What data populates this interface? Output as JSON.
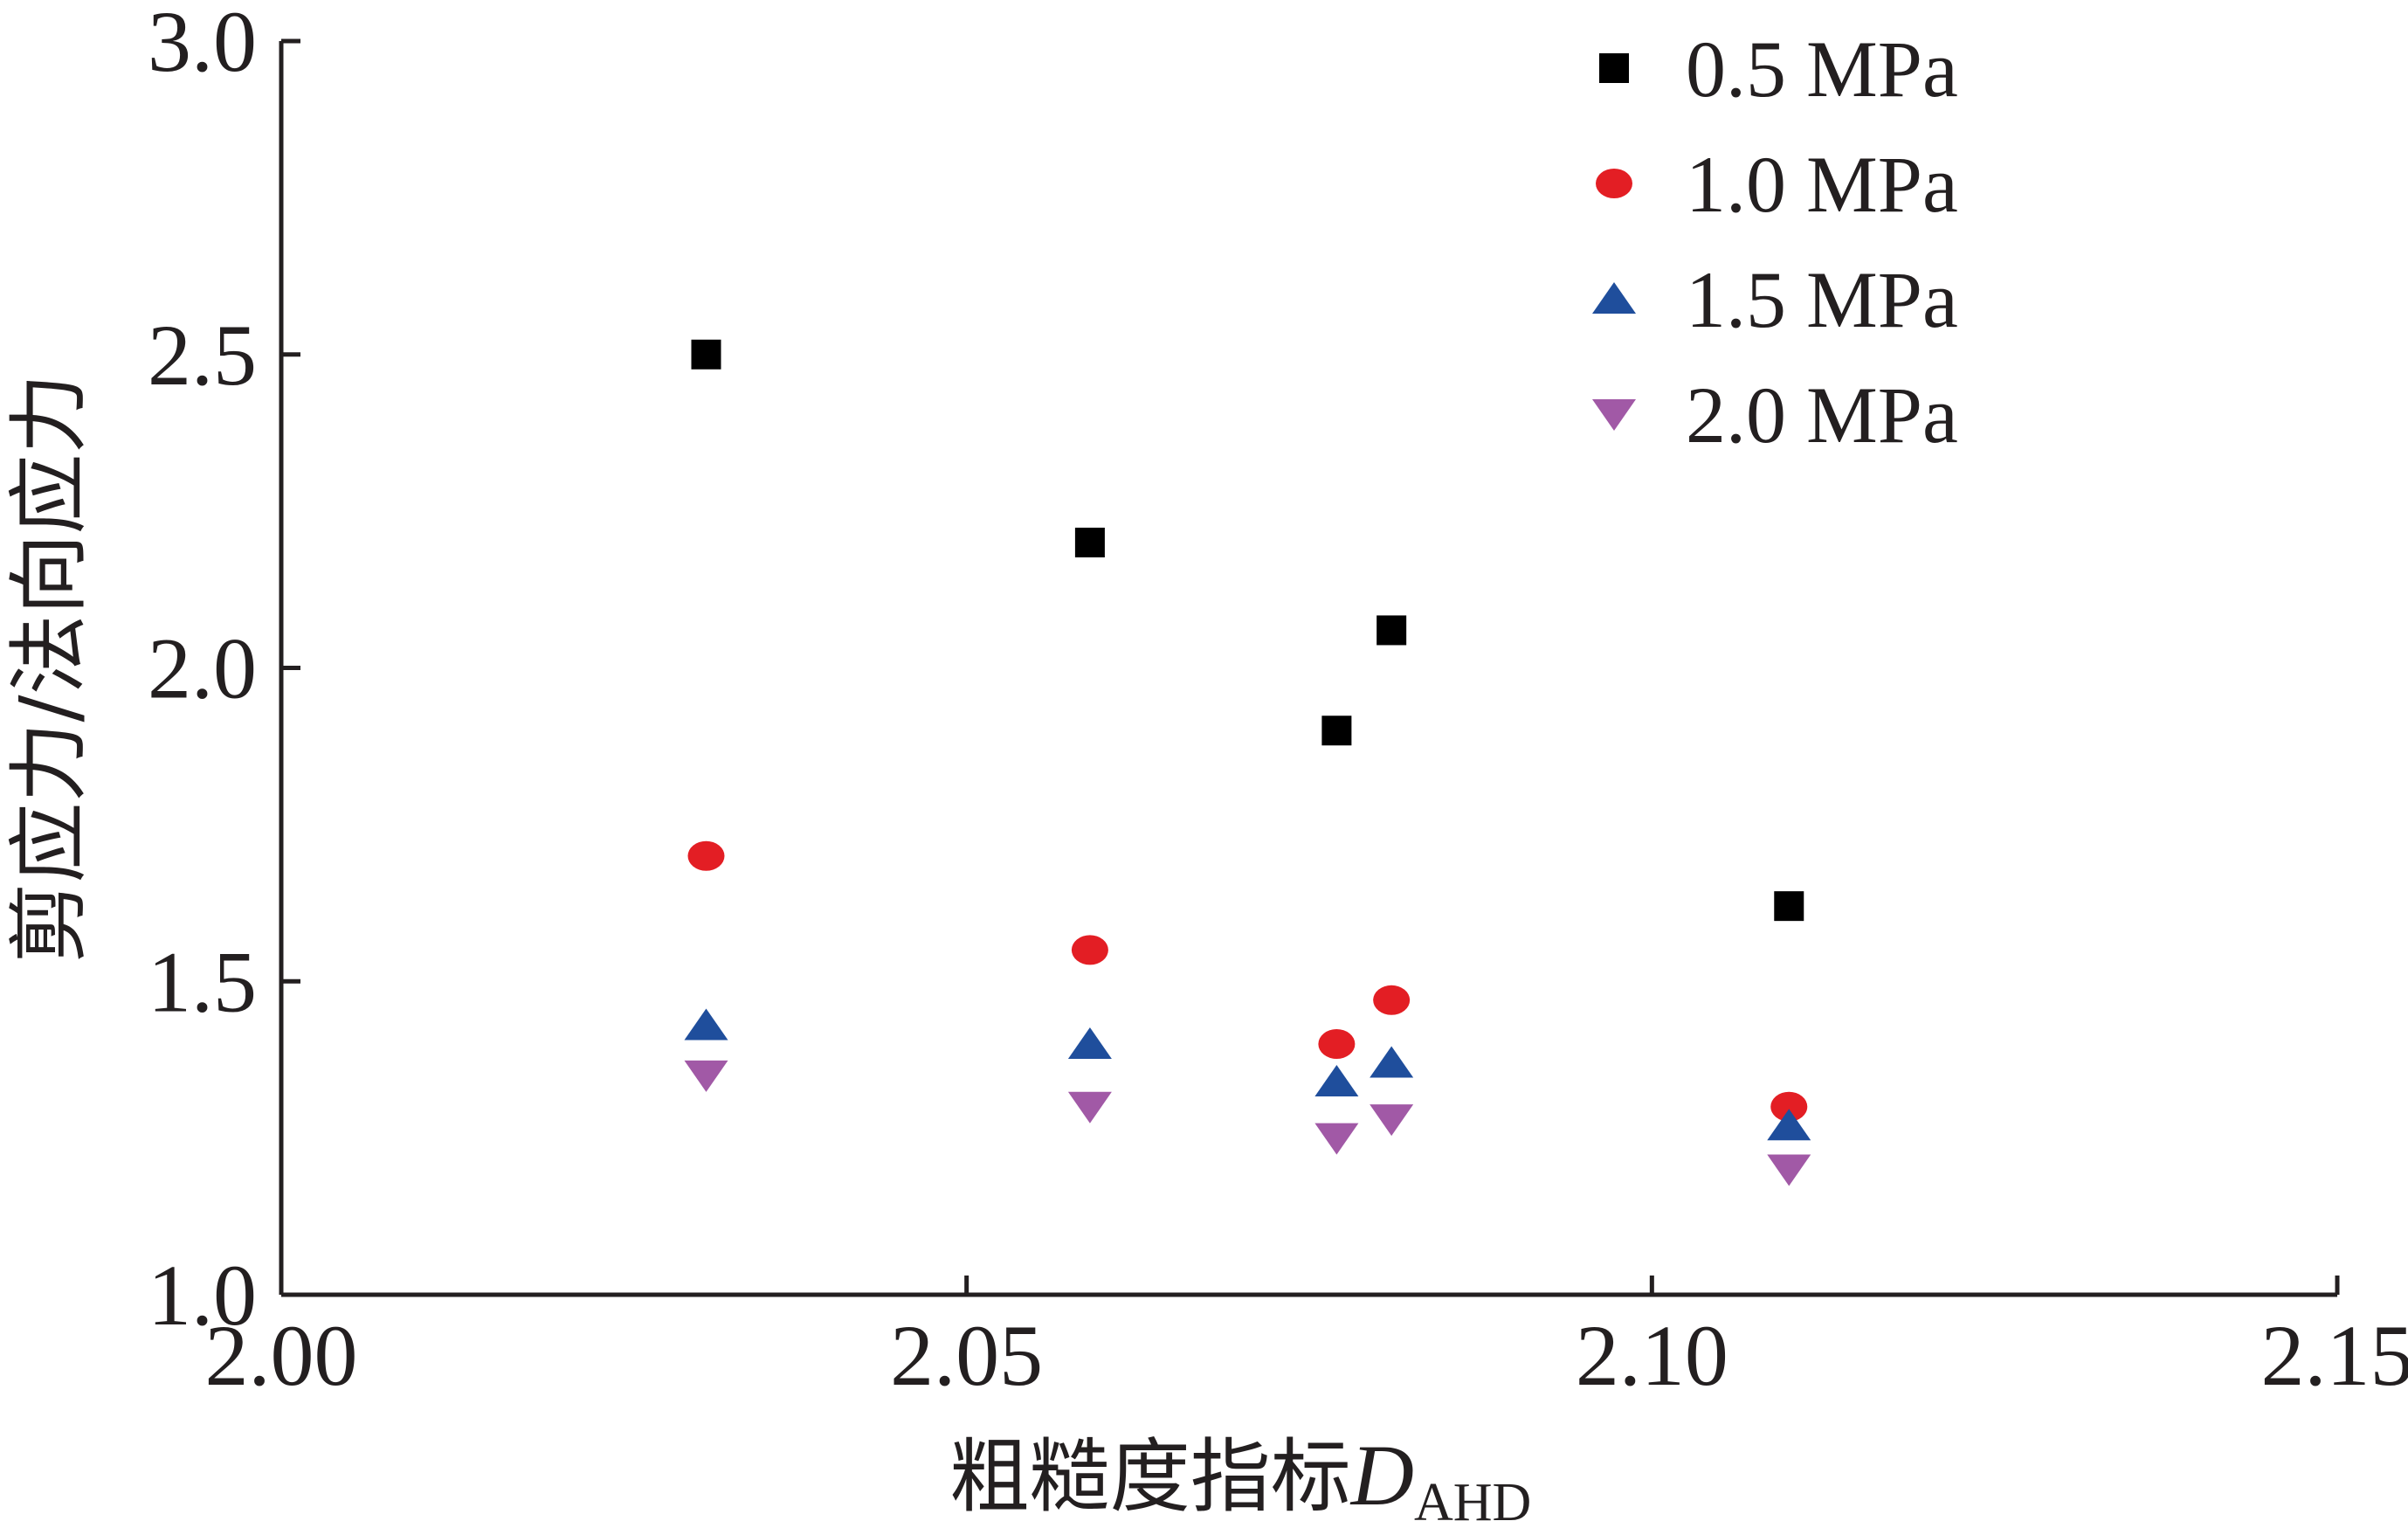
{
  "chart_data": {
    "type": "scatter",
    "title": "",
    "xlabel": "粗糙度指标",
    "xlabel_symbol": "D",
    "xlabel_subscript": "AHD",
    "ylabel": "剪应力/法向应力",
    "xlim": [
      2.0,
      2.15
    ],
    "ylim": [
      1.0,
      3.0
    ],
    "x_ticks": [
      "2.00",
      "2.05",
      "2.10",
      "2.15"
    ],
    "y_ticks": [
      "1.0",
      "1.5",
      "2.0",
      "2.5",
      "3.0"
    ],
    "grid": false,
    "legend_position": "top-right",
    "series": [
      {
        "name": "0.5 MPa",
        "marker": "square",
        "color": "#000000",
        "points": [
          [
            2.031,
            2.5
          ],
          [
            2.059,
            2.2
          ],
          [
            2.077,
            1.9
          ],
          [
            2.081,
            2.06
          ],
          [
            2.11,
            1.62
          ]
        ]
      },
      {
        "name": "1.0 MPa",
        "marker": "circle",
        "color": "#e31e24",
        "points": [
          [
            2.031,
            1.7
          ],
          [
            2.059,
            1.55
          ],
          [
            2.077,
            1.4
          ],
          [
            2.081,
            1.47
          ],
          [
            2.11,
            1.3
          ]
        ]
      },
      {
        "name": "1.5 MPa",
        "marker": "triangle-up",
        "color": "#1f4e9c",
        "points": [
          [
            2.031,
            1.43
          ],
          [
            2.059,
            1.4
          ],
          [
            2.077,
            1.34
          ],
          [
            2.081,
            1.37
          ],
          [
            2.11,
            1.27
          ]
        ]
      },
      {
        "name": "2.0 MPa",
        "marker": "triangle-down",
        "color": "#a159a6",
        "points": [
          [
            2.031,
            1.35
          ],
          [
            2.059,
            1.3
          ],
          [
            2.077,
            1.25
          ],
          [
            2.081,
            1.28
          ],
          [
            2.11,
            1.2
          ]
        ]
      }
    ]
  }
}
